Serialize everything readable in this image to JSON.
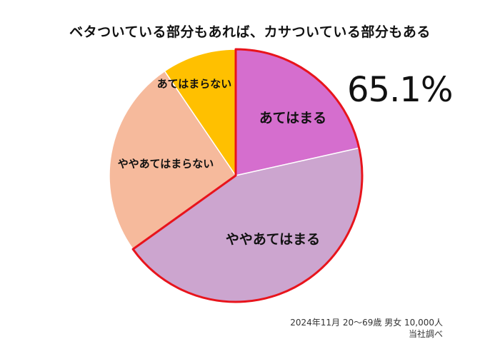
{
  "chart_data": {
    "type": "pie",
    "title": "ベタついている部分もあれば、カサついている部分もある",
    "start_angle_deg": 0,
    "direction": "clockwise",
    "slices": [
      {
        "label": "あてはまる",
        "value": 21.5,
        "color": "#D56ECE"
      },
      {
        "label": "ややあてはまる",
        "value": 43.6,
        "color": "#CCA5CF"
      },
      {
        "label": "ややあてはまらない",
        "value": 25.4,
        "color": "#F6BA9C"
      },
      {
        "label": "あてはまらない",
        "value": 9.5,
        "color": "#FFC000"
      }
    ],
    "highlight": {
      "text": "65.1%",
      "slices": [
        "あてはまる",
        "ややあてはまる"
      ],
      "outline_color": "#E8141C"
    },
    "footnote": [
      "2024年11月  20～69歳 男女 10,000人",
      "当社調べ"
    ]
  }
}
